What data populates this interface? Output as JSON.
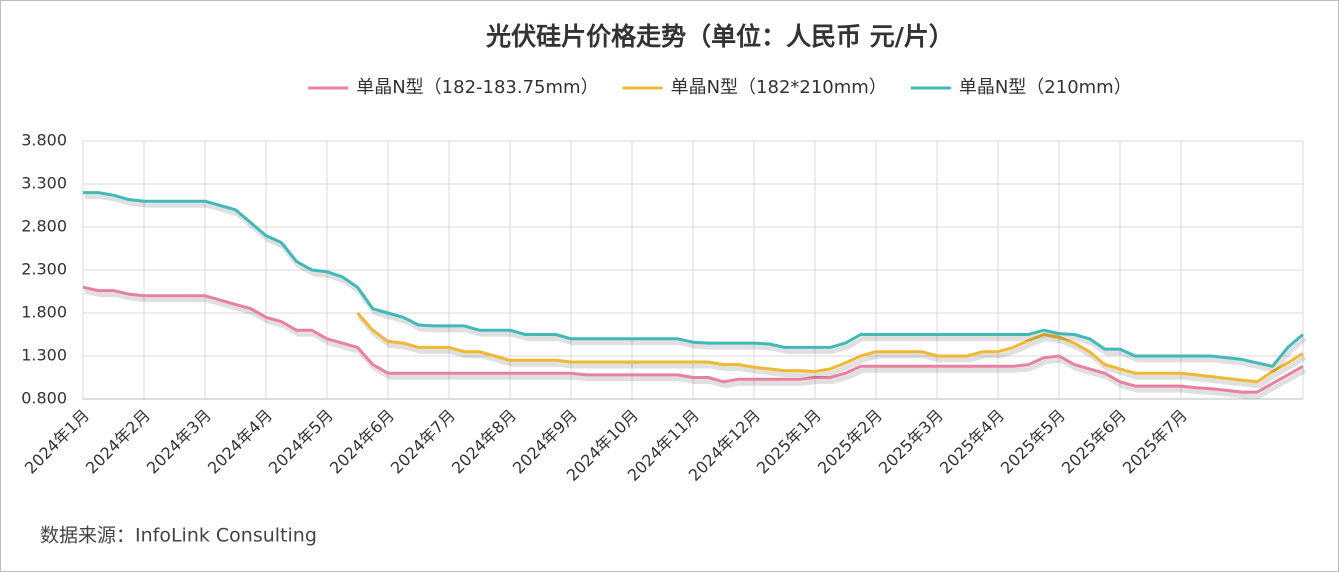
{
  "chart_data": {
    "type": "line",
    "title": "光伏硅片价格走势（单位：人民币 元/片）",
    "source": "数据来源：InfoLink Consulting",
    "categories": [
      "2024年1月",
      null,
      null,
      null,
      "2024年2月",
      null,
      null,
      null,
      "2024年3月",
      null,
      null,
      null,
      "2024年4月",
      null,
      null,
      null,
      "2024年5月",
      null,
      null,
      null,
      "2024年6月",
      null,
      null,
      null,
      "2024年7月",
      null,
      null,
      null,
      "2024年8月",
      null,
      null,
      null,
      "2024年9月",
      null,
      null,
      null,
      "2024年10月",
      null,
      null,
      null,
      "2024年11月",
      null,
      null,
      null,
      "2024年12月",
      null,
      null,
      null,
      "2025年1月",
      null,
      null,
      null,
      "2025年2月",
      null,
      null,
      null,
      "2025年3月",
      null,
      null,
      null,
      "2025年4月",
      null,
      null,
      null,
      "2025年5月",
      null,
      null,
      null,
      "2025年6月",
      null,
      null,
      null,
      "2025年7月",
      null,
      null,
      null,
      null,
      null,
      null,
      null,
      null
    ],
    "series": [
      {
        "name": "单晶N型（182-183.75mm）",
        "color": "#e9809f",
        "values": [
          2.1,
          2.06,
          2.06,
          2.02,
          2.0,
          2.0,
          2.0,
          2.0,
          2.0,
          1.95,
          1.9,
          1.85,
          1.75,
          1.7,
          1.6,
          1.6,
          1.5,
          1.45,
          1.4,
          1.2,
          1.1,
          1.1,
          1.1,
          1.1,
          1.1,
          1.1,
          1.1,
          1.1,
          1.1,
          1.1,
          1.1,
          1.1,
          1.1,
          1.08,
          1.08,
          1.08,
          1.08,
          1.08,
          1.08,
          1.08,
          1.05,
          1.05,
          1.0,
          1.03,
          1.03,
          1.03,
          1.03,
          1.03,
          1.05,
          1.05,
          1.1,
          1.18,
          1.18,
          1.18,
          1.18,
          1.18,
          1.18,
          1.18,
          1.18,
          1.18,
          1.18,
          1.18,
          1.2,
          1.28,
          1.3,
          1.2,
          1.15,
          1.1,
          1.0,
          0.95,
          0.95,
          0.95,
          0.95,
          0.93,
          0.92,
          0.9,
          0.88,
          0.88,
          0.98,
          1.08,
          1.18
        ]
      },
      {
        "name": "单晶N型（182*210mm）",
        "color": "#f2b733",
        "values": [
          null,
          null,
          null,
          null,
          null,
          null,
          null,
          null,
          null,
          null,
          null,
          null,
          null,
          null,
          null,
          null,
          null,
          null,
          1.8,
          1.6,
          1.47,
          1.45,
          1.4,
          1.4,
          1.4,
          1.35,
          1.35,
          1.3,
          1.25,
          1.25,
          1.25,
          1.25,
          1.23,
          1.23,
          1.23,
          1.23,
          1.23,
          1.23,
          1.23,
          1.23,
          1.23,
          1.23,
          1.2,
          1.2,
          1.17,
          1.15,
          1.13,
          1.13,
          1.12,
          1.15,
          1.22,
          1.3,
          1.35,
          1.35,
          1.35,
          1.35,
          1.3,
          1.3,
          1.3,
          1.35,
          1.35,
          1.4,
          1.48,
          1.55,
          1.52,
          1.45,
          1.35,
          1.2,
          1.15,
          1.1,
          1.1,
          1.1,
          1.1,
          1.08,
          1.06,
          1.04,
          1.02,
          1.0,
          1.12,
          1.22,
          1.33
        ]
      },
      {
        "name": "单晶N型（210mm）",
        "color": "#41b9b6",
        "values": [
          3.2,
          3.2,
          3.17,
          3.12,
          3.1,
          3.1,
          3.1,
          3.1,
          3.1,
          3.05,
          3.0,
          2.85,
          2.7,
          2.62,
          2.4,
          2.3,
          2.28,
          2.22,
          2.1,
          1.85,
          1.8,
          1.75,
          1.66,
          1.65,
          1.65,
          1.65,
          1.6,
          1.6,
          1.6,
          1.55,
          1.55,
          1.55,
          1.5,
          1.5,
          1.5,
          1.5,
          1.5,
          1.5,
          1.5,
          1.5,
          1.46,
          1.45,
          1.45,
          1.45,
          1.45,
          1.44,
          1.4,
          1.4,
          1.4,
          1.4,
          1.45,
          1.55,
          1.55,
          1.55,
          1.55,
          1.55,
          1.55,
          1.55,
          1.55,
          1.55,
          1.55,
          1.55,
          1.55,
          1.6,
          1.56,
          1.55,
          1.5,
          1.38,
          1.38,
          1.3,
          1.3,
          1.3,
          1.3,
          1.3,
          1.3,
          1.28,
          1.26,
          1.22,
          1.18,
          1.4,
          1.55
        ]
      }
    ],
    "ylim": [
      0.8,
      3.8
    ],
    "yticks": [
      {
        "value": 0.8,
        "label": "0.800"
      },
      {
        "value": 1.3,
        "label": "1.300"
      },
      {
        "value": 1.8,
        "label": "1.800"
      },
      {
        "value": 2.3,
        "label": "2.300"
      },
      {
        "value": 2.8,
        "label": "2.800"
      },
      {
        "value": 3.3,
        "label": "3.300"
      },
      {
        "value": 3.8,
        "label": "3.800"
      }
    ],
    "grid": true
  }
}
